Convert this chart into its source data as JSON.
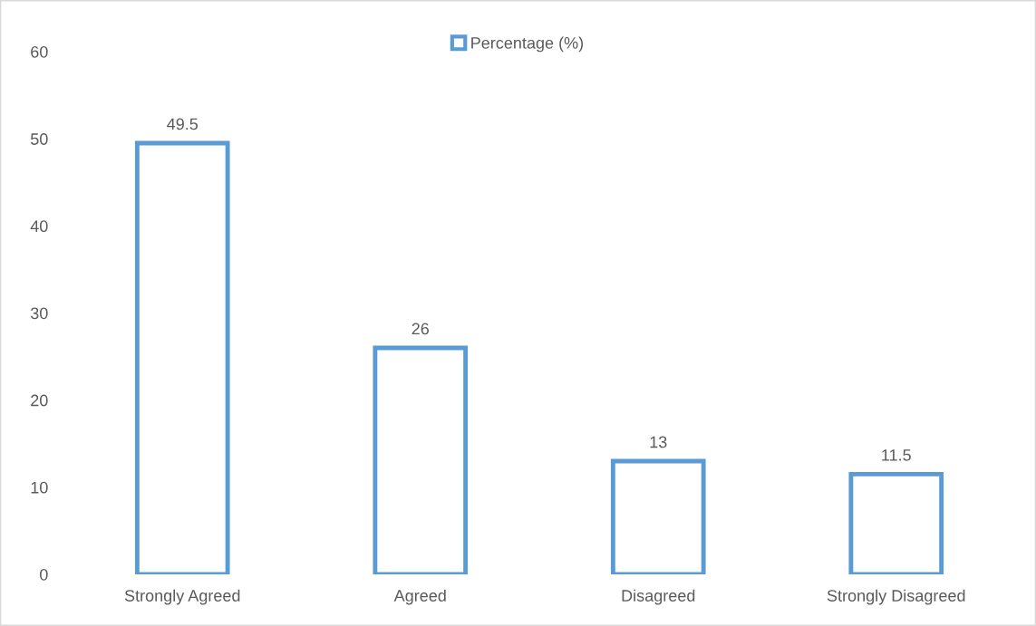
{
  "chart_data": {
    "type": "bar",
    "categories": [
      "Strongly Agreed",
      "Agreed",
      "Disagreed",
      "Strongly Disagreed"
    ],
    "series": [
      {
        "name": "Percentage (%)",
        "color": "#5b9bd5",
        "values": [
          49.5,
          26,
          13,
          11.5
        ]
      }
    ],
    "ylim": [
      0,
      60
    ],
    "yticks": [
      0,
      10,
      20,
      30,
      40,
      50,
      60
    ],
    "data_labels": true,
    "legend": "top",
    "grid": false
  }
}
